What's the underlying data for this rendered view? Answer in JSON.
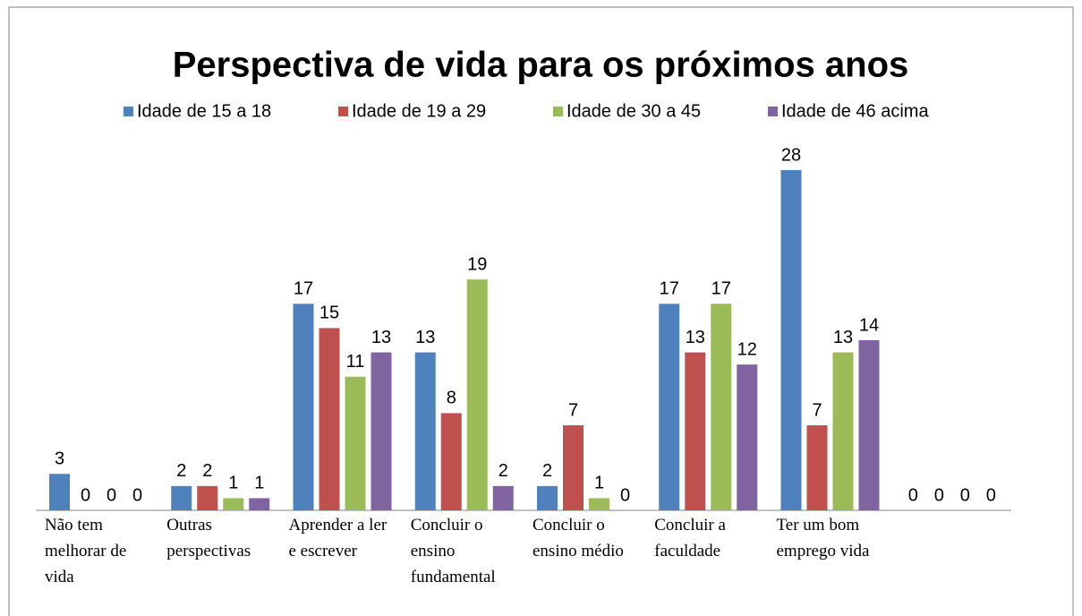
{
  "chart_data": {
    "type": "bar",
    "title": "Perspectiva de vida para os próximos anos",
    "categories": [
      "Não tem melhorar de vida",
      "Outras perspectivas",
      "Aprender a ler e escrever",
      "Concluir o ensino fundamental",
      "Concluir o ensino médio",
      "Concluir a faculdade",
      "Ter um bom emprego  vida",
      null
    ],
    "series": [
      {
        "name": "Idade de 15 a 18",
        "color": "#4f81bd",
        "values": [
          3,
          2,
          17,
          13,
          2,
          17,
          28,
          0
        ]
      },
      {
        "name": "Idade de 19 a 29",
        "color": "#c0504d",
        "values": [
          0,
          2,
          15,
          8,
          7,
          13,
          7,
          0
        ]
      },
      {
        "name": "Idade de 30 a 45",
        "color": "#9bbb59",
        "values": [
          0,
          1,
          11,
          19,
          1,
          17,
          13,
          0
        ]
      },
      {
        "name": "Idade de 46 acima",
        "color": "#8064a2",
        "values": [
          0,
          1,
          13,
          2,
          0,
          12,
          14,
          0
        ]
      }
    ],
    "legend": "top"
  }
}
